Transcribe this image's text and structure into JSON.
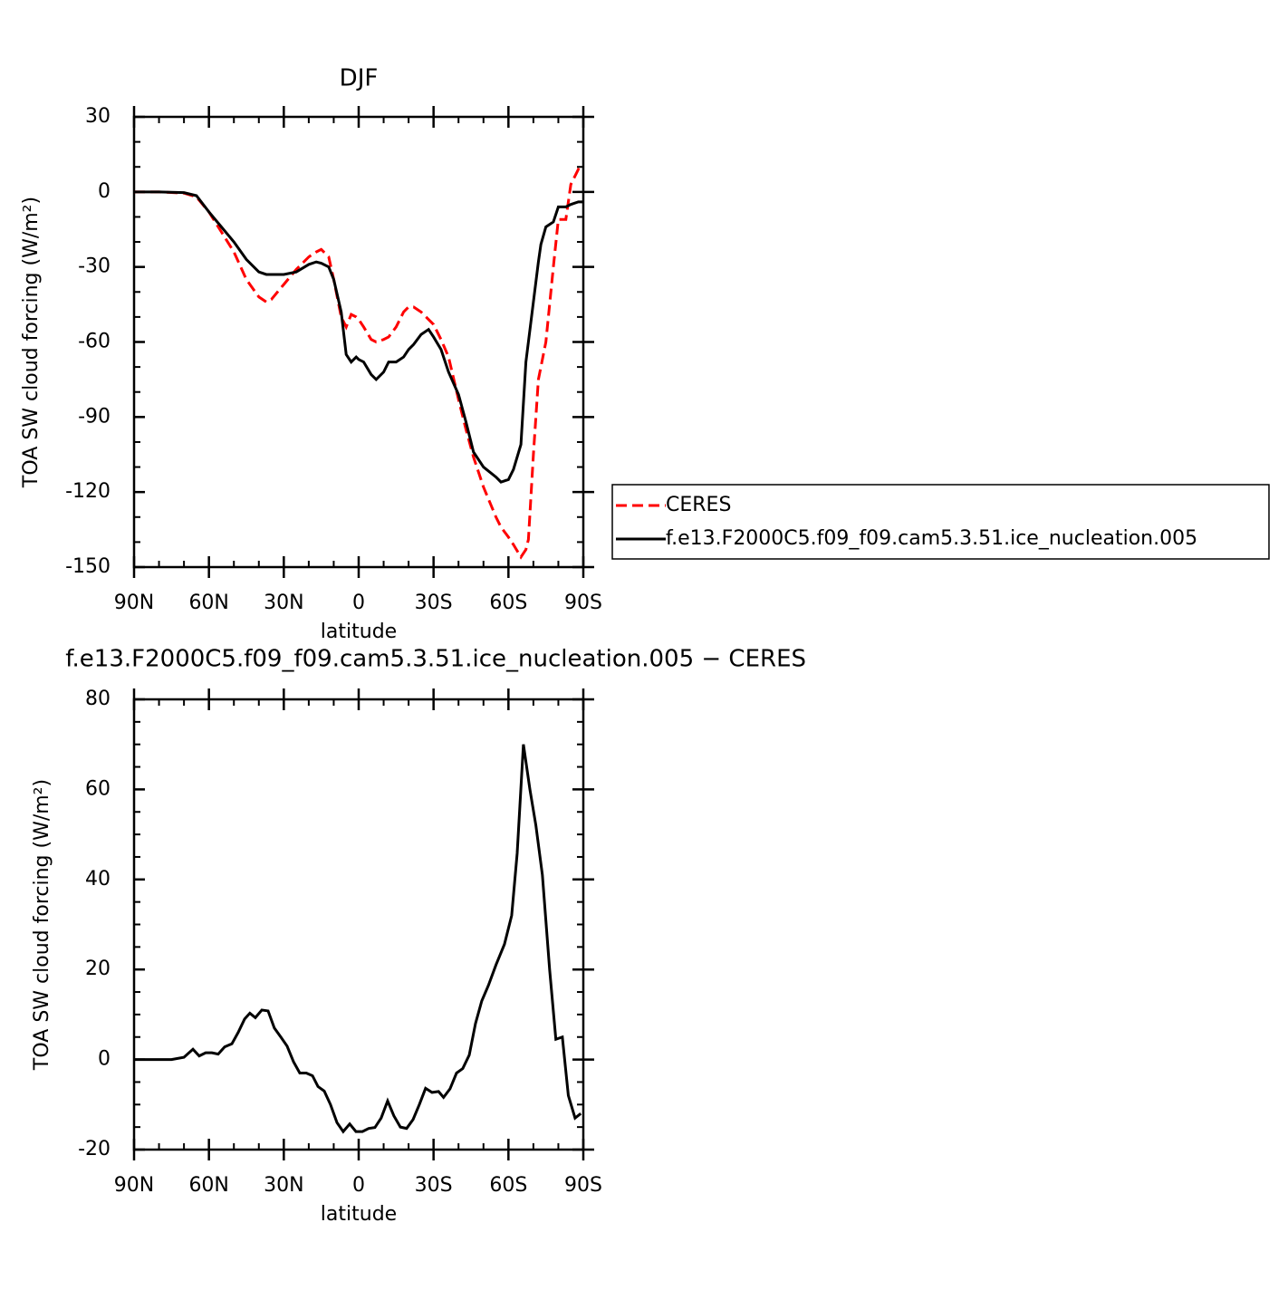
{
  "chart_data": [
    {
      "type": "line",
      "title": "DJF",
      "xlabel": "latitude",
      "ylabel": "TOA SW cloud forcing (W/m²)",
      "x": [
        90,
        80,
        70,
        65,
        60,
        55,
        50,
        45,
        40,
        37,
        35,
        30,
        25,
        20,
        17,
        15,
        12,
        10,
        7,
        5,
        3,
        1,
        0,
        -2,
        -5,
        -7,
        -10,
        -12,
        -15,
        -18,
        -20,
        -22,
        -25,
        -28,
        -30,
        -33,
        -36,
        -40,
        -43,
        -46,
        -50,
        -55,
        -57,
        -60,
        -62,
        -65,
        -67,
        -68,
        -70,
        -72,
        -73,
        -75,
        -78,
        -80,
        -83,
        -85,
        -88,
        -90
      ],
      "series": [
        {
          "name": "CERES",
          "color": "#ff0000",
          "linestyle": "dashed",
          "values": [
            0,
            0,
            -0.5,
            -2,
            -8,
            -16,
            -24,
            -35,
            -42,
            -44,
            -43,
            -37,
            -31,
            -26,
            -24,
            -23,
            -26,
            -35,
            -50,
            -54,
            -49,
            -50,
            -51,
            -54,
            -59,
            -60,
            -59,
            -58,
            -54,
            -48,
            -46,
            -46,
            -48,
            -51,
            -53,
            -59,
            -66,
            -83,
            -95,
            -106,
            -118,
            -130,
            -134,
            -138,
            -141,
            -146,
            -143,
            -139,
            -105,
            -75,
            -70,
            -60,
            -30,
            -11,
            -11,
            3,
            9,
            8
          ]
        },
        {
          "name": "f.e13.F2000C5.f09_f09.cam5.3.51.ice_nucleation.005",
          "color": "#000000",
          "linestyle": "solid",
          "values": [
            0,
            0,
            -0.3,
            -1.5,
            -8,
            -14,
            -20,
            -27,
            -32,
            -33,
            -33,
            -33,
            -32,
            -29,
            -28,
            -28.5,
            -30,
            -35,
            -48,
            -65,
            -68,
            -66,
            -67,
            -68,
            -73,
            -75,
            -72,
            -68,
            -68,
            -66,
            -63,
            -61,
            -57,
            -55,
            -58,
            -63,
            -72,
            -81,
            -92,
            -104,
            -110,
            -114,
            -116,
            -115,
            -111,
            -101,
            -68,
            -60,
            -44,
            -28,
            -21,
            -14,
            -12,
            -6,
            -6,
            -5,
            -4,
            -4
          ]
        }
      ],
      "xlim": [
        90,
        -90
      ],
      "xticks": [
        {
          "value": 90,
          "label": "90N"
        },
        {
          "value": 60,
          "label": "60N"
        },
        {
          "value": 30,
          "label": "30N"
        },
        0,
        {
          "value": -30,
          "label": "30S"
        },
        {
          "value": -60,
          "label": "60S"
        },
        {
          "value": -90,
          "label": "90S"
        }
      ],
      "xminorticks": [
        80,
        70,
        50,
        40,
        20,
        10,
        -10,
        -20,
        -40,
        -50,
        -70,
        -80
      ],
      "ylim": [
        -150,
        30
      ],
      "yticks": [
        -150,
        -120,
        -90,
        -60,
        -30,
        0,
        30
      ],
      "yminorticks": [
        20,
        10,
        -10,
        -20,
        -40,
        -50,
        -70,
        -80,
        -100,
        -110,
        -130,
        -140
      ],
      "legend": "right-outside"
    },
    {
      "type": "line",
      "title": "f.e13.F2000C5.f09_f09.cam5.3.51.ice_nucleation.005 − CERES",
      "xlabel": "latitude",
      "ylabel": "TOA SW cloud forcing (W/m²)",
      "x": [
        90,
        75,
        70,
        66.4,
        63.9,
        61.3,
        58.8,
        56.3,
        53.7,
        50.8,
        48.3,
        45.7,
        43.6,
        41.4,
        38.8,
        36.3,
        33.8,
        31.2,
        28.7,
        26.1,
        23.6,
        21,
        18.5,
        16.3,
        13.8,
        11.3,
        8.7,
        6.2,
        3.6,
        1.1,
        -1.5,
        -4,
        -6.5,
        -9,
        -11.6,
        -14.1,
        -16.7,
        -19.2,
        -21.8,
        -24.3,
        -26.8,
        -29.4,
        -32,
        -34,
        -36.6,
        -39.2,
        -41.7,
        -44.3,
        -46.8,
        -49.3,
        -52,
        -55,
        -58.4,
        -61.3,
        -63.5,
        -66,
        -68.6,
        -71,
        -73.6,
        -76.5,
        -79,
        -81.6,
        -84,
        -86.7,
        -89
      ],
      "values": [
        0,
        0,
        0.5,
        2.3,
        0.8,
        1.5,
        1.5,
        1.2,
        2.8,
        3.5,
        6,
        9,
        10.3,
        9.3,
        11,
        10.8,
        7,
        5,
        3,
        -0.5,
        -3,
        -3,
        -3.6,
        -6,
        -7,
        -10,
        -14,
        -16,
        -14.3,
        -16,
        -16,
        -15.3,
        -15.1,
        -13,
        -9.2,
        -12.5,
        -15,
        -15.3,
        -13.3,
        -10,
        -6.4,
        -7.3,
        -7.1,
        -8.4,
        -6.5,
        -3,
        -2,
        1,
        8,
        13,
        16.5,
        21,
        25.6,
        32,
        45.8,
        70,
        60,
        52,
        41,
        20,
        4.5,
        5,
        -8,
        -13,
        -12
      ],
      "color": "#000000",
      "linestyle": "solid",
      "xlim": [
        90,
        -90
      ],
      "xticks": [
        {
          "value": 90,
          "label": "90N"
        },
        {
          "value": 60,
          "label": "60N"
        },
        {
          "value": 30,
          "label": "30N"
        },
        0,
        {
          "value": -30,
          "label": "30S"
        },
        {
          "value": -60,
          "label": "60S"
        },
        {
          "value": -90,
          "label": "90S"
        }
      ],
      "xminorticks": [
        80,
        70,
        50,
        40,
        20,
        10,
        -10,
        -20,
        -40,
        -50,
        -70,
        -80
      ],
      "ylim": [
        -20,
        80
      ],
      "yticks": [
        -20,
        0,
        20,
        40,
        60,
        80
      ],
      "yminorticks": [
        75,
        70,
        65,
        55,
        50,
        45,
        35,
        30,
        25,
        15,
        10,
        5,
        -5,
        -10,
        -15
      ]
    }
  ]
}
